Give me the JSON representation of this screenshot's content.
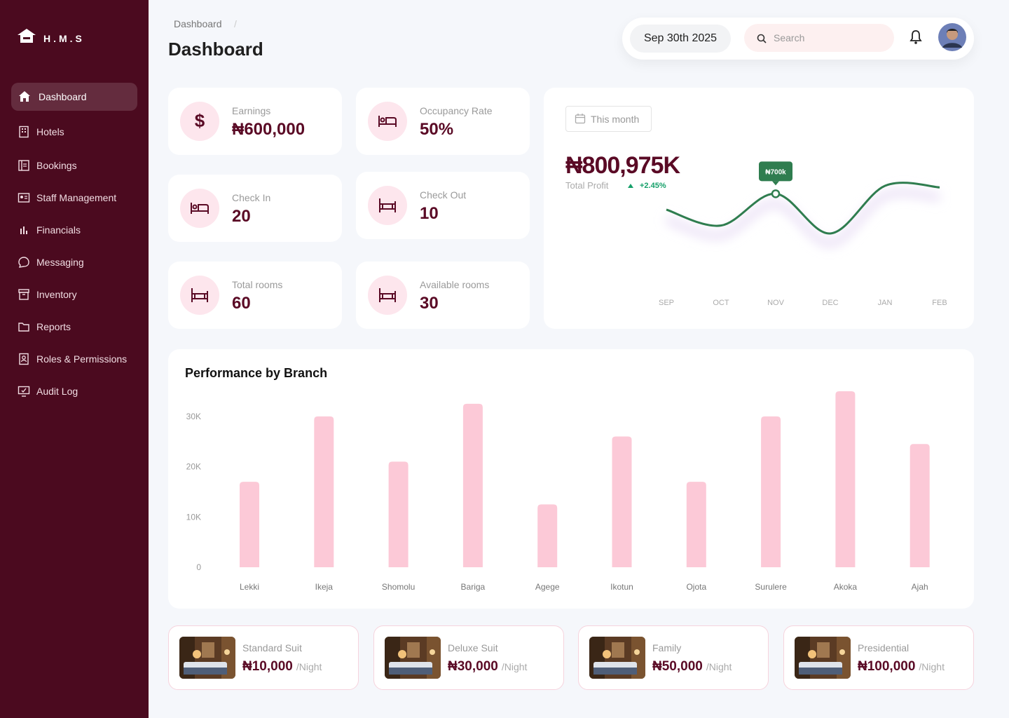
{
  "sidebar": {
    "brand": "H.M.S",
    "nav": [
      "Dashboard",
      "Hotels",
      "Bookings",
      "Staff Management",
      "Financials",
      "Messaging",
      "Inventory",
      "Reports",
      "Roles & Permissions",
      "Audit Log"
    ]
  },
  "header": {
    "breadcrumb": "Dashboard",
    "separator": "/",
    "title": "Dashboard",
    "date": "Sep 30th 2025",
    "search_placeholder": "Search"
  },
  "stats": [
    {
      "label": "Earnings",
      "value": "₦600,000"
    },
    {
      "label": "Occupancy Rate",
      "value": "50%"
    },
    {
      "label": "Check In",
      "value": "20"
    },
    {
      "label": "Check Out",
      "value": "10"
    },
    {
      "label": "Total rooms",
      "value": "60"
    },
    {
      "label": "Available rooms",
      "value": "30"
    }
  ],
  "profit": {
    "filter": "This month",
    "value": "₦800,975K",
    "label": "Total Profit",
    "change": "+2.45%"
  },
  "chart_data": [
    {
      "type": "line",
      "categories": [
        "SEP",
        "OCT",
        "NOV",
        "DEC",
        "JAN",
        "FEB"
      ],
      "values": [
        600,
        500,
        700,
        450,
        750,
        740
      ],
      "value_labels": [
        null,
        null,
        "₦700k",
        null,
        null,
        null
      ],
      "color": "#2f7d4f"
    },
    {
      "type": "bar",
      "title": "Performance by Branch",
      "categories": [
        "Lekki",
        "Ikeja",
        "Shomolu",
        "Bariga",
        "Agege",
        "Ikotun",
        "Ojota",
        "Surulere",
        "Akoka",
        "Ajah"
      ],
      "values": [
        17000,
        30000,
        21000,
        32500,
        12500,
        26000,
        17000,
        30000,
        35000,
        24500
      ],
      "color": "#fcc9d7",
      "ylim": [
        0,
        35000
      ],
      "yticks": [
        0,
        {
          "value": 10000,
          "label": "10K"
        },
        {
          "value": 20000,
          "label": "20K"
        },
        {
          "value": 30000,
          "label": "30K"
        }
      ],
      "grid": false
    }
  ],
  "rooms": [
    {
      "name": "Standard Suit",
      "price": "₦10,000",
      "unit": "/Night"
    },
    {
      "name": "Deluxe Suit",
      "price": "₦30,000",
      "unit": "/Night"
    },
    {
      "name": "Family",
      "price": "₦50,000",
      "unit": "/Night"
    },
    {
      "name": "Presidential",
      "price": "₦100,000",
      "unit": "/Night"
    }
  ]
}
